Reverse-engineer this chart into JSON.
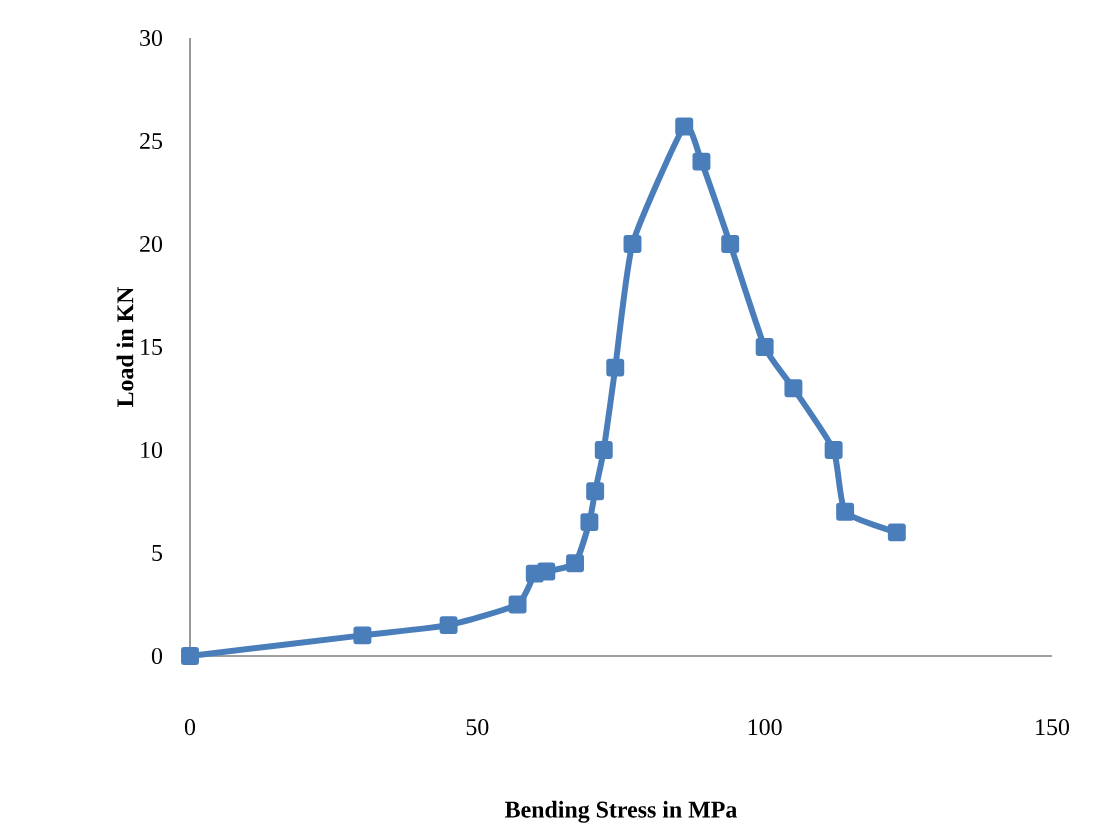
{
  "chart_data": {
    "type": "line",
    "xlabel": "Bending Stress in MPa",
    "ylabel": "Load in KN",
    "x": [
      0,
      30,
      45,
      57,
      60,
      62,
      67,
      69.5,
      70.5,
      72,
      74,
      77,
      86,
      89,
      94,
      100,
      105,
      112,
      114,
      123
    ],
    "series": [
      {
        "color": "#4a7ebb",
        "values": [
          0,
          1,
          1.5,
          2.5,
          4,
          4.1,
          4.5,
          6.5,
          8,
          10,
          14,
          20,
          25.7,
          24,
          20,
          15,
          13,
          10,
          7,
          6
        ]
      }
    ],
    "xlim": [
      0,
      150
    ],
    "xticks": [
      0,
      50,
      100,
      150
    ],
    "ylim": [
      0,
      30
    ],
    "yticks": [
      0,
      5,
      10,
      15,
      20,
      25,
      30
    ],
    "grid": false,
    "marker": "square",
    "line_style": "solid"
  }
}
